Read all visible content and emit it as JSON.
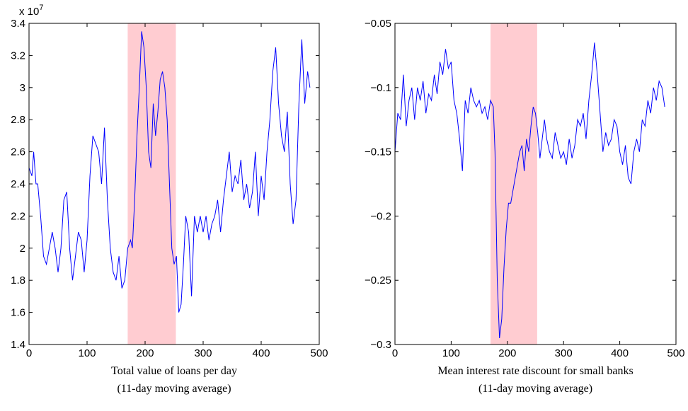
{
  "chart_data": [
    {
      "type": "line",
      "color": "#0000ff",
      "y_multiplier": {
        "base": "x 10",
        "exponent": "7"
      },
      "xlabel": [
        "Total value of loans per day",
        "(11-day moving average)"
      ],
      "shade": {
        "x": [
          170,
          253
        ],
        "color": "#ffccd1"
      },
      "xlim": [
        0,
        500
      ],
      "xticks": [
        0,
        100,
        200,
        300,
        400,
        500
      ],
      "ylim": [
        1.4,
        3.4
      ],
      "yticks": [
        1.4,
        1.6,
        1.8,
        2,
        2.2,
        2.4,
        2.6,
        2.8,
        3,
        3.2,
        3.4
      ],
      "x": [
        0,
        5,
        8,
        12,
        15,
        20,
        25,
        30,
        35,
        40,
        45,
        50,
        55,
        60,
        65,
        70,
        75,
        80,
        85,
        90,
        95,
        100,
        105,
        110,
        115,
        120,
        125,
        130,
        135,
        140,
        145,
        150,
        155,
        160,
        165,
        170,
        175,
        178,
        182,
        186,
        190,
        194,
        198,
        202,
        206,
        210,
        214,
        218,
        222,
        226,
        230,
        234,
        238,
        242,
        246,
        250,
        254,
        258,
        262,
        266,
        270,
        275,
        280,
        285,
        290,
        295,
        300,
        305,
        310,
        315,
        320,
        325,
        330,
        335,
        340,
        345,
        350,
        355,
        360,
        365,
        370,
        375,
        380,
        385,
        390,
        395,
        400,
        405,
        410,
        415,
        420,
        425,
        430,
        435,
        440,
        445,
        450,
        455,
        460,
        465,
        470,
        475,
        480,
        484
      ],
      "values": [
        2.5,
        2.45,
        2.6,
        2.4,
        2.4,
        2.2,
        1.95,
        1.9,
        2.0,
        2.1,
        2.0,
        1.85,
        2.0,
        2.3,
        2.35,
        2.0,
        1.8,
        1.95,
        2.1,
        2.05,
        1.85,
        2.05,
        2.45,
        2.7,
        2.65,
        2.6,
        2.4,
        2.75,
        2.3,
        2.0,
        1.85,
        1.8,
        1.95,
        1.75,
        1.8,
        2.0,
        2.05,
        2.0,
        2.3,
        2.7,
        3.0,
        3.35,
        3.25,
        3.0,
        2.6,
        2.5,
        2.9,
        2.7,
        2.85,
        3.05,
        3.1,
        3.0,
        2.8,
        2.4,
        2.0,
        1.9,
        1.95,
        1.6,
        1.65,
        1.9,
        2.2,
        2.1,
        1.7,
        2.2,
        2.1,
        2.2,
        2.1,
        2.2,
        2.05,
        2.15,
        2.2,
        2.3,
        2.1,
        2.3,
        2.45,
        2.6,
        2.35,
        2.45,
        2.4,
        2.55,
        2.3,
        2.4,
        2.25,
        2.35,
        2.6,
        2.2,
        2.45,
        2.3,
        2.6,
        2.8,
        3.1,
        3.25,
        2.9,
        2.7,
        2.6,
        2.85,
        2.4,
        2.15,
        2.3,
        2.9,
        3.3,
        2.9,
        3.1,
        3.0
      ]
    },
    {
      "type": "line",
      "color": "#0000ff",
      "xlabel": [
        "Mean interest rate discount for small banks",
        "(11-day moving average)"
      ],
      "shade": {
        "x": [
          170,
          253
        ],
        "color": "#ffccd1"
      },
      "xlim": [
        0,
        500
      ],
      "xticks": [
        0,
        100,
        200,
        300,
        400,
        500
      ],
      "ylim": [
        -0.3,
        -0.05
      ],
      "yticks": [
        {
          "value": -0.3,
          "label": "−0.3"
        },
        {
          "value": -0.25,
          "label": "−0.25"
        },
        {
          "value": -0.2,
          "label": "−0.2"
        },
        {
          "value": -0.15,
          "label": "−0.15"
        },
        {
          "value": -0.1,
          "label": "−0.1"
        },
        {
          "value": -0.05,
          "label": "−0.05"
        }
      ],
      "x": [
        0,
        5,
        10,
        15,
        20,
        25,
        30,
        35,
        40,
        45,
        50,
        55,
        60,
        65,
        70,
        75,
        80,
        85,
        90,
        95,
        100,
        105,
        110,
        115,
        120,
        125,
        130,
        135,
        140,
        145,
        150,
        155,
        160,
        165,
        170,
        175,
        178,
        182,
        186,
        190,
        194,
        198,
        202,
        206,
        210,
        214,
        218,
        222,
        226,
        230,
        234,
        238,
        242,
        246,
        250,
        254,
        258,
        262,
        266,
        270,
        275,
        280,
        285,
        290,
        295,
        300,
        305,
        310,
        315,
        320,
        325,
        330,
        335,
        340,
        345,
        350,
        355,
        360,
        365,
        370,
        375,
        380,
        385,
        390,
        395,
        400,
        405,
        410,
        415,
        420,
        425,
        430,
        435,
        440,
        445,
        450,
        455,
        460,
        465,
        470,
        475,
        480
      ],
      "values": [
        -0.15,
        -0.12,
        -0.125,
        -0.09,
        -0.13,
        -0.11,
        -0.1,
        -0.125,
        -0.1,
        -0.11,
        -0.095,
        -0.12,
        -0.105,
        -0.11,
        -0.09,
        -0.105,
        -0.08,
        -0.09,
        -0.07,
        -0.085,
        -0.08,
        -0.11,
        -0.12,
        -0.14,
        -0.165,
        -0.11,
        -0.12,
        -0.1,
        -0.11,
        -0.115,
        -0.11,
        -0.12,
        -0.115,
        -0.125,
        -0.11,
        -0.115,
        -0.15,
        -0.25,
        -0.295,
        -0.28,
        -0.24,
        -0.21,
        -0.19,
        -0.19,
        -0.18,
        -0.17,
        -0.16,
        -0.15,
        -0.145,
        -0.165,
        -0.14,
        -0.15,
        -0.13,
        -0.115,
        -0.12,
        -0.135,
        -0.155,
        -0.14,
        -0.125,
        -0.14,
        -0.15,
        -0.155,
        -0.135,
        -0.145,
        -0.155,
        -0.15,
        -0.16,
        -0.14,
        -0.155,
        -0.145,
        -0.125,
        -0.13,
        -0.12,
        -0.14,
        -0.11,
        -0.09,
        -0.065,
        -0.09,
        -0.12,
        -0.15,
        -0.135,
        -0.145,
        -0.14,
        -0.125,
        -0.13,
        -0.15,
        -0.16,
        -0.145,
        -0.17,
        -0.175,
        -0.15,
        -0.14,
        -0.15,
        -0.125,
        -0.13,
        -0.11,
        -0.12,
        -0.1,
        -0.11,
        -0.095,
        -0.1,
        -0.115
      ]
    }
  ]
}
